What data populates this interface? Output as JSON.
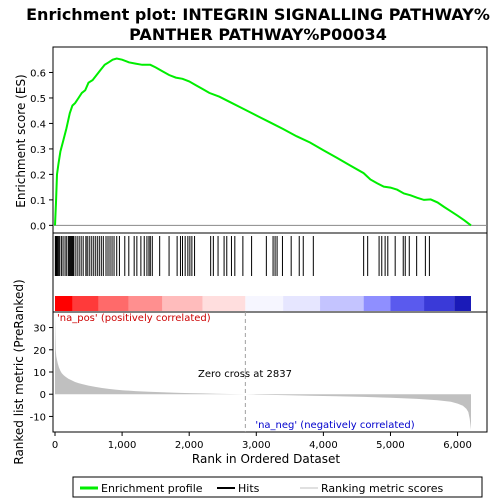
{
  "chart_data": {
    "type": "line",
    "title_line1": "Enrichment plot: INTEGRIN SIGNALLING PATHWAY%",
    "title_line2": "PANTHER PATHWAY%P00034",
    "xlabel": "Rank in Ordered Dataset",
    "ylabel_top": "Enrichment score (ES)",
    "ylabel_bottom": "Ranked list metric (PreRanked)",
    "xlim": [
      0,
      6300
    ],
    "xticks": [
      0,
      1000,
      2000,
      3000,
      4000,
      5000,
      6000
    ],
    "xtick_labels": [
      "0",
      "1,000",
      "2,000",
      "3,000",
      "4,000",
      "5,000",
      "6,000"
    ],
    "es_ylim": [
      -0.03,
      0.7
    ],
    "es_yticks": [
      0.0,
      0.1,
      0.2,
      0.3,
      0.4,
      0.5,
      0.6
    ],
    "es_ytick_labels": [
      "0.0",
      "0.1",
      "0.2",
      "0.3",
      "0.4",
      "0.5",
      "0.6"
    ],
    "metric_ylim": [
      -17,
      37
    ],
    "metric_yticks": [
      -10,
      0,
      10,
      20,
      30
    ],
    "metric_ytick_labels": [
      "-10",
      "0",
      "10",
      "20",
      "30"
    ],
    "es_profile": {
      "x": [
        0,
        15,
        30,
        50,
        80,
        120,
        170,
        220,
        260,
        300,
        350,
        400,
        450,
        500,
        560,
        620,
        680,
        740,
        800,
        860,
        920,
        1000,
        1100,
        1200,
        1300,
        1420,
        1500,
        1600,
        1700,
        1800,
        1900,
        2000,
        2100,
        2200,
        2300,
        2450,
        2600,
        2750,
        2900,
        3050,
        3200,
        3400,
        3600,
        3800,
        4000,
        4200,
        4400,
        4600,
        4700,
        4800,
        4900,
        5000,
        5100,
        5200,
        5300,
        5400,
        5500,
        5600,
        5700,
        5800,
        5900,
        6000,
        6100,
        6200
      ],
      "y": [
        0.0,
        0.09,
        0.2,
        0.24,
        0.29,
        0.33,
        0.38,
        0.44,
        0.47,
        0.48,
        0.5,
        0.52,
        0.53,
        0.56,
        0.57,
        0.59,
        0.61,
        0.63,
        0.64,
        0.65,
        0.655,
        0.65,
        0.64,
        0.635,
        0.63,
        0.63,
        0.62,
        0.605,
        0.59,
        0.58,
        0.575,
        0.565,
        0.55,
        0.535,
        0.52,
        0.505,
        0.485,
        0.465,
        0.445,
        0.425,
        0.405,
        0.378,
        0.35,
        0.325,
        0.295,
        0.265,
        0.235,
        0.205,
        0.18,
        0.165,
        0.152,
        0.148,
        0.14,
        0.125,
        0.118,
        0.108,
        0.1,
        0.102,
        0.09,
        0.072,
        0.055,
        0.038,
        0.02,
        0.0
      ]
    },
    "hits": [
      5,
      15,
      28,
      40,
      55,
      70,
      95,
      120,
      150,
      175,
      200,
      215,
      230,
      245,
      260,
      275,
      300,
      330,
      360,
      390,
      420,
      460,
      480,
      510,
      540,
      570,
      600,
      630,
      660,
      690,
      720,
      760,
      790,
      820,
      850,
      880,
      920,
      960,
      1040,
      1100,
      1180,
      1220,
      1280,
      1330,
      1370,
      1400,
      1420,
      1450,
      1560,
      1700,
      1820,
      1870,
      1900,
      1940,
      1980,
      2010,
      2040,
      2080,
      2320,
      2360,
      2430,
      2520,
      2560,
      2630,
      2680,
      2800,
      2930,
      3150,
      3250,
      3280,
      3310,
      3390,
      3520,
      3640,
      3700,
      3850,
      4600,
      4660,
      4830,
      4870,
      4920,
      4960,
      5070,
      5190,
      5220,
      5280,
      5390,
      5520,
      5580
    ],
    "metric_profile": {
      "x": [
        0,
        10,
        20,
        40,
        60,
        80,
        100,
        130,
        160,
        200,
        250,
        300,
        350,
        400,
        500,
        600,
        700,
        800,
        900,
        1000,
        1200,
        1400,
        1600,
        1800,
        2000,
        2200,
        2400,
        2600,
        2837,
        3000,
        3400,
        3800,
        4200,
        4600,
        5000,
        5400,
        5700,
        5900,
        6000,
        6080,
        6130,
        6160,
        6180,
        6200
      ],
      "y": [
        35,
        20,
        17,
        14,
        12,
        10.5,
        9.5,
        8.5,
        7.8,
        7,
        6.2,
        5.5,
        5,
        4.6,
        3.9,
        3.3,
        2.8,
        2.4,
        2.1,
        1.8,
        1.4,
        1.1,
        0.85,
        0.65,
        0.5,
        0.36,
        0.24,
        0.12,
        0,
        -0.15,
        -0.4,
        -0.65,
        -0.9,
        -1.2,
        -1.6,
        -2.1,
        -2.7,
        -3.4,
        -4.2,
        -5.2,
        -6.5,
        -8,
        -11,
        -16
      ]
    },
    "zero_cross_x": 2837,
    "zero_cross_label": "Zero cross at 2837",
    "pos_label": "'na_pos' (positively correlated)",
    "neg_label": "'na_neg' (negatively correlated)",
    "colors": {
      "es_line": "#00ee00",
      "hit": "#000000",
      "metric_fill": "#c0c0c0",
      "pos_text": "#cc0000",
      "neg_text": "#0000cc",
      "zero_line": "#a0a0a0"
    },
    "heat_bar": [
      {
        "from": 0,
        "to": 260,
        "color": "#ff0000"
      },
      {
        "from": 260,
        "to": 650,
        "color": "#ff3a3a"
      },
      {
        "from": 650,
        "to": 1100,
        "color": "#ff6a6a"
      },
      {
        "from": 1100,
        "to": 1600,
        "color": "#ff8f8f"
      },
      {
        "from": 1600,
        "to": 2200,
        "color": "#ffbcbc"
      },
      {
        "from": 2200,
        "to": 2837,
        "color": "#ffdede"
      },
      {
        "from": 2837,
        "to": 3400,
        "color": "#f6f6ff"
      },
      {
        "from": 3400,
        "to": 3950,
        "color": "#e6e6ff"
      },
      {
        "from": 3950,
        "to": 4600,
        "color": "#c4c4ff"
      },
      {
        "from": 4600,
        "to": 5000,
        "color": "#8f8fff"
      },
      {
        "from": 5000,
        "to": 5500,
        "color": "#5a5aee"
      },
      {
        "from": 5500,
        "to": 5950,
        "color": "#3a3ad8"
      },
      {
        "from": 5950,
        "to": 6200,
        "color": "#1a1ab8"
      }
    ]
  },
  "legend": {
    "items": [
      {
        "label": "Enrichment profile",
        "color": "#00ee00"
      },
      {
        "label": "Hits",
        "color": "#000000"
      },
      {
        "label": "Ranking metric scores",
        "color": "#c0c0c0"
      }
    ]
  }
}
